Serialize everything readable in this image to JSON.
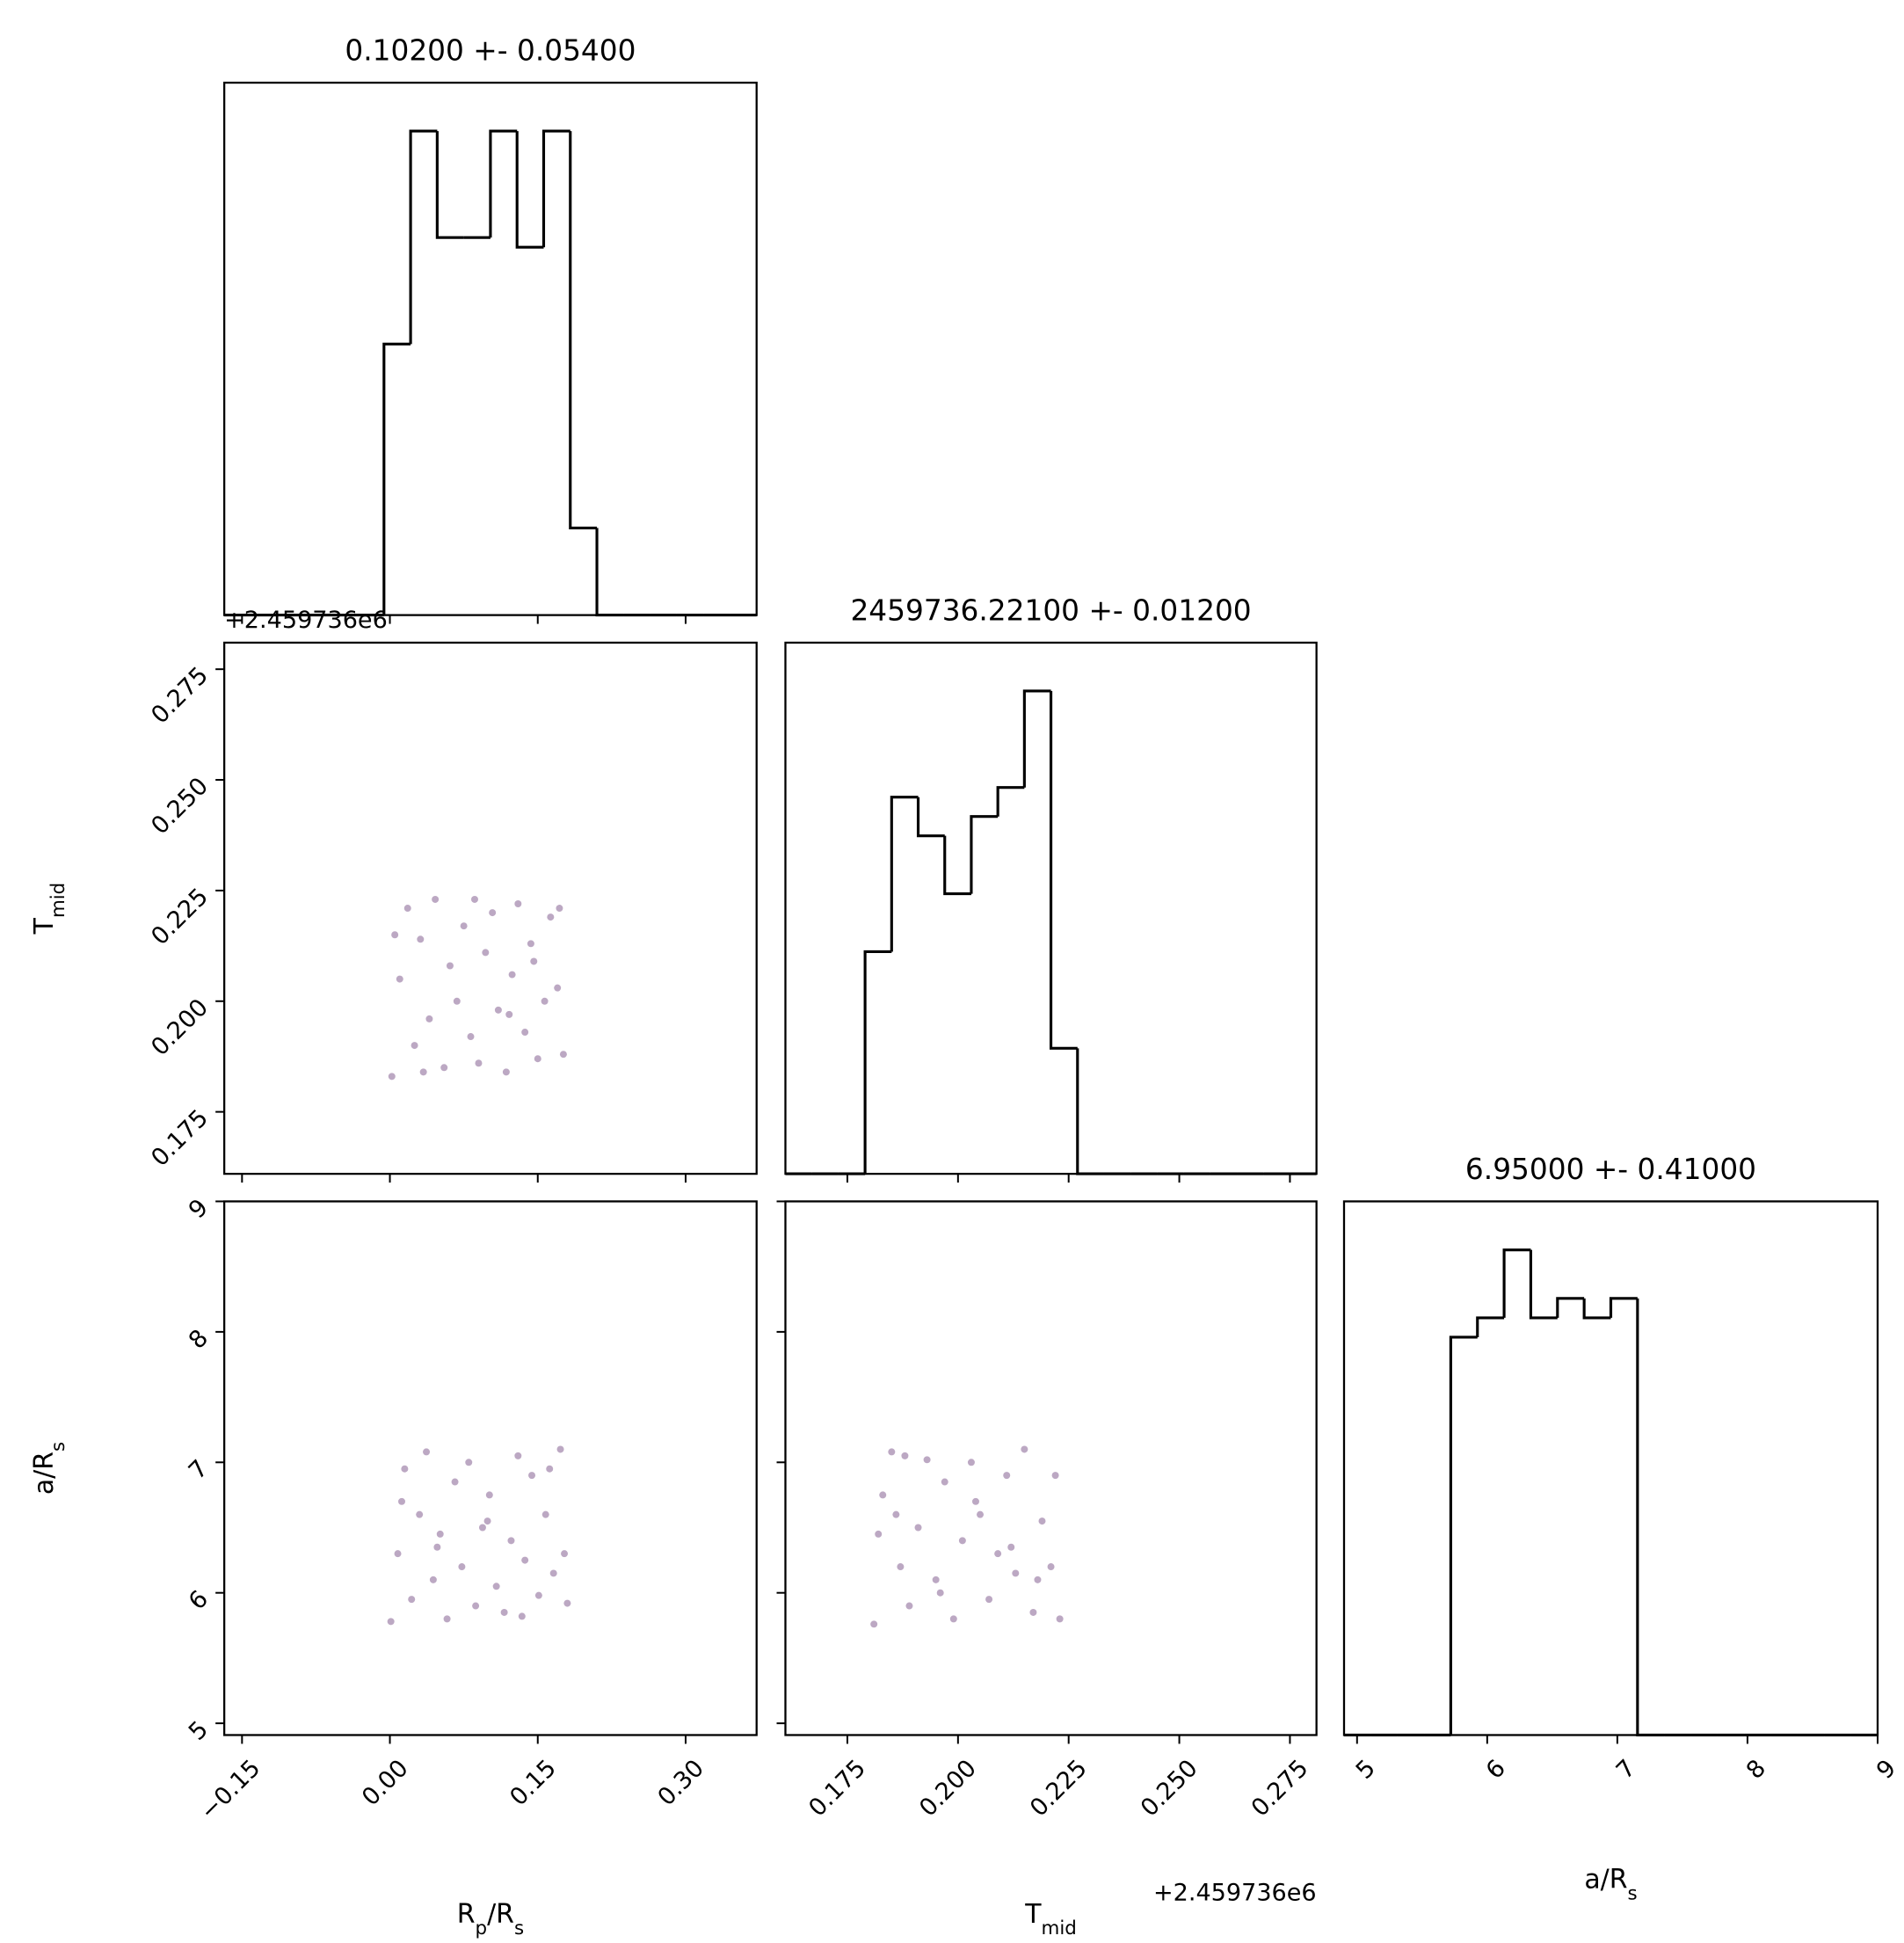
{
  "chart_data": [
    {
      "type": "histogram",
      "title": "0.10200 +- 0.05400",
      "bins": [
        -0.168,
        -0.141,
        -0.114,
        -0.087,
        -0.06,
        -0.033,
        -0.006,
        0.021,
        0.048,
        0.075,
        0.102,
        0.129,
        0.156,
        0.183,
        0.21,
        0.237,
        0.264,
        0.291,
        0.318,
        0.345,
        0.372
      ],
      "counts": [
        0,
        0,
        0,
        0,
        0,
        0,
        28,
        50,
        39,
        39,
        50,
        38,
        50,
        9,
        0,
        0,
        0,
        0,
        0,
        0
      ],
      "xlim": [
        -0.168,
        0.372
      ],
      "ylim": [
        0,
        55
      ],
      "xticks": [
        -0.15,
        0,
        0.15,
        0.3
      ],
      "color": "#000000"
    },
    {
      "type": "scatter",
      "offset_y": "+2.459736e6",
      "ylabel": [
        {
          "text": "T"
        },
        {
          "text": "mid",
          "sub": true
        }
      ],
      "x": [
        0.002,
        0.01,
        0.018,
        0.025,
        0.031,
        0.04,
        0.046,
        0.055,
        0.061,
        0.068,
        0.075,
        0.082,
        0.09,
        0.097,
        0.104,
        0.11,
        0.118,
        0.124,
        0.13,
        0.137,
        0.143,
        0.15,
        0.157,
        0.163,
        0.17,
        0.176,
        0.005,
        0.034,
        0.086,
        0.121,
        0.146,
        0.172
      ],
      "y": [
        0.183,
        0.205,
        0.221,
        0.19,
        0.214,
        0.196,
        0.223,
        0.185,
        0.208,
        0.2,
        0.217,
        0.192,
        0.186,
        0.211,
        0.22,
        0.198,
        0.184,
        0.206,
        0.222,
        0.193,
        0.213,
        0.187,
        0.2,
        0.219,
        0.203,
        0.188,
        0.215,
        0.184,
        0.223,
        0.197,
        0.209,
        0.221
      ],
      "xlim": [
        -0.168,
        0.372
      ],
      "ylim": [
        0.161,
        0.281
      ],
      "color": "#6b3d7a",
      "xticks": [
        -0.15,
        0,
        0.15,
        0.3
      ],
      "yticks": [
        0.175,
        {
          "value": 0.2,
          "label": "0.200"
        },
        0.225,
        {
          "value": 0.25,
          "label": "0.250"
        },
        0.275
      ]
    },
    {
      "type": "histogram",
      "title": "2459736.22100 +- 0.01200",
      "bins": [
        0.161,
        0.167,
        0.173,
        0.179,
        0.185,
        0.191,
        0.197,
        0.203,
        0.209,
        0.215,
        0.221,
        0.227,
        0.233,
        0.239,
        0.245,
        0.251,
        0.257,
        0.263,
        0.269,
        0.275,
        0.281
      ],
      "counts": [
        0,
        0,
        0,
        23,
        39,
        35,
        29,
        37,
        40,
        50,
        13,
        0,
        0,
        0,
        0,
        0,
        0,
        0,
        0,
        0
      ],
      "xlim": [
        0.161,
        0.281
      ],
      "ylim": [
        0,
        55
      ],
      "xticks": [
        0.175,
        0.2,
        0.225,
        0.25,
        0.275
      ],
      "color": "#000000"
    },
    {
      "type": "scatter",
      "xlabel": [
        {
          "text": "R"
        },
        {
          "text": "p",
          "sub": true
        },
        {
          "text": "/R"
        },
        {
          "text": "s",
          "sub": true
        }
      ],
      "ylabel": [
        {
          "text": "a/R"
        },
        {
          "text": "s",
          "sub": true
        }
      ],
      "x": [
        0.001,
        0.008,
        0.015,
        0.022,
        0.03,
        0.037,
        0.044,
        0.051,
        0.058,
        0.066,
        0.073,
        0.08,
        0.087,
        0.094,
        0.101,
        0.108,
        0.116,
        0.123,
        0.13,
        0.137,
        0.144,
        0.151,
        0.158,
        0.166,
        0.173,
        0.18,
        0.012,
        0.048,
        0.099,
        0.134,
        0.162,
        0.177
      ],
      "y": [
        5.78,
        6.3,
        6.95,
        5.95,
        6.6,
        7.08,
        6.1,
        6.45,
        5.8,
        6.85,
        6.2,
        7.0,
        5.9,
        6.5,
        6.75,
        6.05,
        5.85,
        6.4,
        7.05,
        6.25,
        6.9,
        5.98,
        6.6,
        6.15,
        7.1,
        5.92,
        6.7,
        6.35,
        6.55,
        5.82,
        6.95,
        6.3
      ],
      "xlim": [
        -0.168,
        0.372
      ],
      "ylim": [
        4.91,
        9.0
      ],
      "color": "#6b3d7a",
      "xticks": [
        {
          "value": -0.15,
          "label": "−0.15"
        },
        {
          "value": 0,
          "label": "0.00"
        },
        0.15,
        {
          "value": 0.3,
          "label": "0.30"
        }
      ],
      "yticks": [
        5,
        6,
        7,
        8,
        9
      ]
    },
    {
      "type": "scatter",
      "offset_x": "+2.459736e6",
      "xlabel": [
        {
          "text": "T"
        },
        {
          "text": "mid",
          "sub": true
        }
      ],
      "x": [
        0.181,
        0.183,
        0.185,
        0.187,
        0.189,
        0.191,
        0.193,
        0.195,
        0.197,
        0.199,
        0.201,
        0.203,
        0.205,
        0.207,
        0.209,
        0.211,
        0.213,
        0.215,
        0.217,
        0.219,
        0.221,
        0.223,
        0.182,
        0.188,
        0.196,
        0.204,
        0.212,
        0.218,
        0.222,
        0.186
      ],
      "y": [
        5.76,
        6.75,
        7.08,
        6.2,
        5.9,
        6.5,
        7.02,
        6.1,
        6.85,
        5.8,
        6.4,
        7.0,
        6.6,
        5.95,
        6.3,
        6.9,
        6.15,
        7.1,
        5.85,
        6.55,
        6.2,
        5.8,
        6.45,
        7.05,
        6.0,
        6.7,
        6.35,
        6.1,
        6.9,
        6.6
      ],
      "xlim": [
        0.161,
        0.281
      ],
      "ylim": [
        4.91,
        9.0
      ],
      "color": "#6b3d7a",
      "xticks": [
        0.175,
        {
          "value": 0.2,
          "label": "0.200"
        },
        0.225,
        {
          "value": 0.25,
          "label": "0.250"
        },
        0.275
      ],
      "yticks": [
        5,
        6,
        7,
        8,
        9
      ]
    },
    {
      "type": "histogram",
      "title": "6.95000 +- 0.41000",
      "xlabel": [
        {
          "text": "a/R"
        },
        {
          "text": "s",
          "sub": true
        }
      ],
      "bins": [
        4.9,
        5.105,
        5.31,
        5.515,
        5.72,
        5.925,
        6.13,
        6.335,
        6.54,
        6.745,
        6.95,
        7.155,
        7.36,
        7.565,
        7.77,
        7.975,
        8.18,
        8.385,
        8.59,
        8.795,
        9.0
      ],
      "counts": [
        0,
        0,
        0,
        0,
        41,
        43,
        50,
        43,
        45,
        43,
        45,
        0,
        0,
        0,
        0,
        0,
        0,
        0,
        0,
        0
      ],
      "xlim": [
        4.9,
        9.0
      ],
      "ylim": [
        0,
        55
      ],
      "xticks": [
        5,
        6,
        7,
        8,
        9
      ],
      "color": "#000000"
    }
  ]
}
